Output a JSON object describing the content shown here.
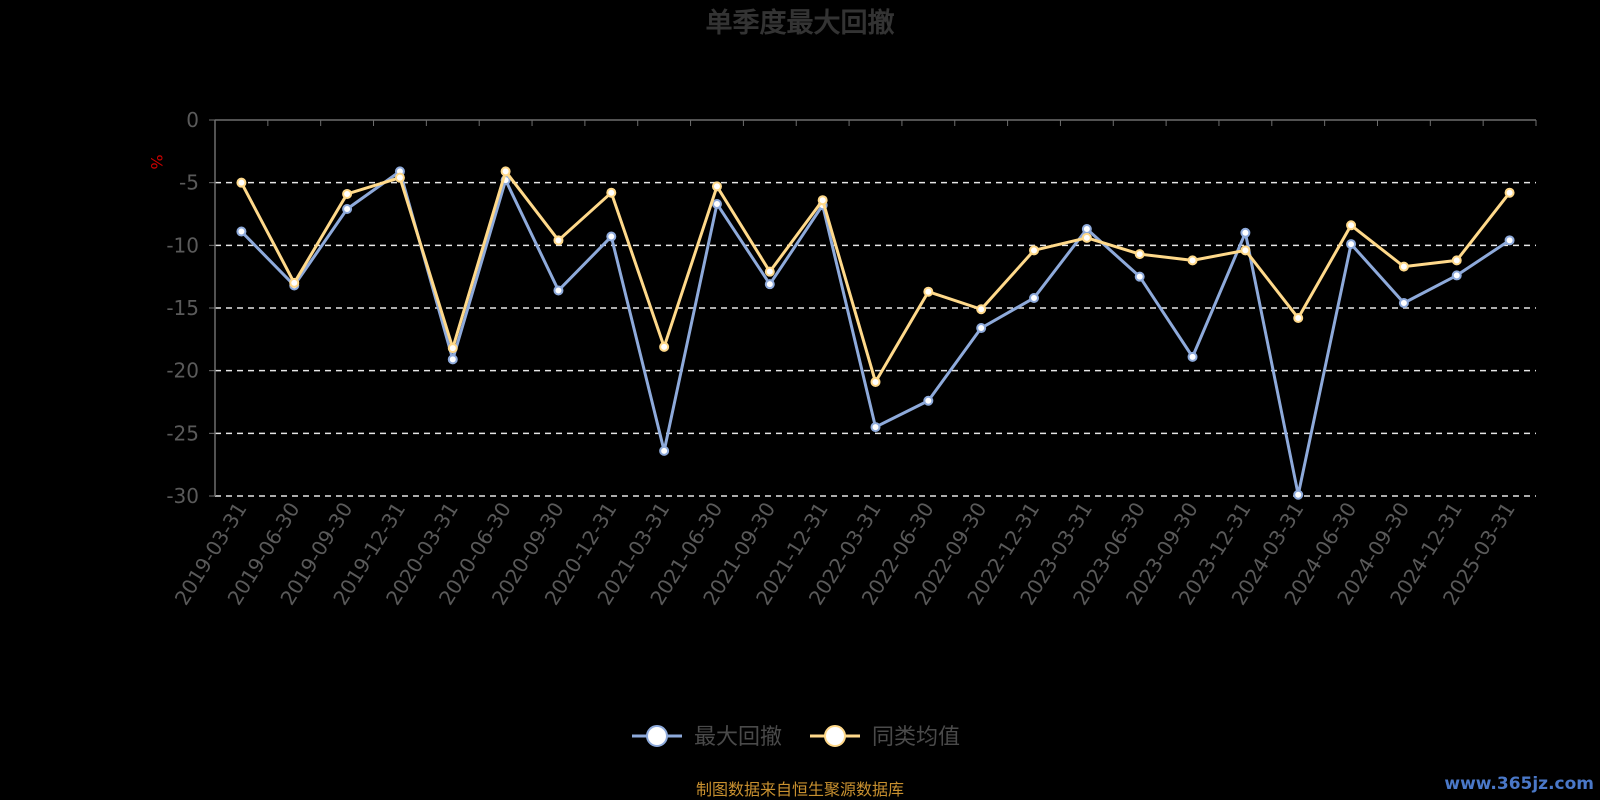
{
  "chart_data": {
    "type": "line",
    "title": "单季度最大回撤",
    "ylabel": "%",
    "ylim": [
      -30,
      0
    ],
    "yticks": [
      0,
      -5,
      -10,
      -15,
      -20,
      -25,
      -30
    ],
    "grid": true,
    "legend_position": "bottom",
    "categories": [
      "2019-03-31",
      "2019-06-30",
      "2019-09-30",
      "2019-12-31",
      "2020-03-31",
      "2020-06-30",
      "2020-09-30",
      "2020-12-31",
      "2021-03-31",
      "2021-06-30",
      "2021-09-30",
      "2021-12-31",
      "2022-03-31",
      "2022-06-30",
      "2022-09-30",
      "2022-12-31",
      "2023-03-31",
      "2023-06-30",
      "2023-09-30",
      "2023-12-31",
      "2024-03-31",
      "2024-06-30",
      "2024-09-30",
      "2024-12-31",
      "2025-03-31"
    ],
    "series": [
      {
        "name": "最大回撤",
        "color": "#8eaadb",
        "values": [
          -8.9,
          -13.2,
          -7.1,
          -4.1,
          -19.1,
          -4.8,
          -13.6,
          -9.3,
          -26.4,
          -6.7,
          -13.1,
          -6.8,
          -24.5,
          -22.4,
          -16.6,
          -14.2,
          -8.7,
          -12.5,
          -18.9,
          -9.0,
          -29.9,
          -9.9,
          -14.6,
          -12.4,
          -9.6
        ]
      },
      {
        "name": "同类均值",
        "color": "#ffd98a",
        "values": [
          -5.0,
          -13.0,
          -5.9,
          -4.6,
          -18.2,
          -4.1,
          -9.6,
          -5.8,
          -18.1,
          -5.3,
          -12.1,
          -6.4,
          -20.9,
          -13.7,
          -15.1,
          -10.4,
          -9.4,
          -10.7,
          -11.2,
          -10.4,
          -15.8,
          -8.4,
          -11.7,
          -11.2,
          -5.8
        ]
      }
    ]
  },
  "footer": {
    "source": "制图数据来自恒生聚源数据库",
    "watermark": "www.365jz.com"
  }
}
